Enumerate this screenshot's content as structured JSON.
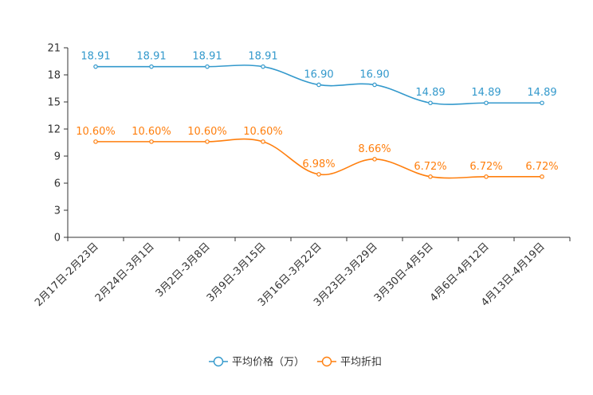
{
  "chart_data": {
    "type": "line",
    "title": "",
    "xlabel": "",
    "ylabel": "",
    "ylim": [
      0,
      21
    ],
    "yticks": [
      0,
      3,
      6,
      9,
      12,
      15,
      18,
      21
    ],
    "categories": [
      "2月17日-2月23日",
      "2月24日-3月1日",
      "3月2日-3月8日",
      "3月9日-3月15日",
      "3月16日-3月22日",
      "3月23日-3月29日",
      "3月30日-4月5日",
      "4月6日-4月12日",
      "4月13日-4月19日"
    ],
    "series": [
      {
        "name": "平均价格（万）",
        "color": "#3399cc",
        "values": [
          18.91,
          18.91,
          18.91,
          18.91,
          16.9,
          16.9,
          14.89,
          14.89,
          14.89
        ],
        "labels": [
          "18.91",
          "18.91",
          "18.91",
          "18.91",
          "16.90",
          "16.90",
          "14.89",
          "14.89",
          "14.89"
        ]
      },
      {
        "name": "平均折扣",
        "color": "#ff7f0e",
        "values": [
          10.6,
          10.6,
          10.6,
          10.6,
          6.98,
          8.66,
          6.72,
          6.72,
          6.72
        ],
        "labels": [
          "10.60%",
          "10.60%",
          "10.60%",
          "10.60%",
          "6.98%",
          "8.66%",
          "6.72%",
          "6.72%",
          "6.72%"
        ]
      }
    ],
    "legend_position": "bottom-center"
  }
}
